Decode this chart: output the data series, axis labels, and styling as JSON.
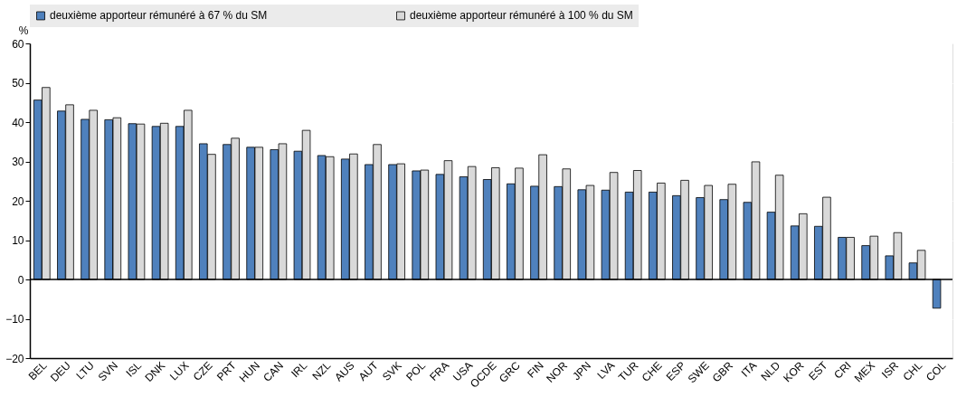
{
  "chart_data": {
    "type": "bar",
    "ylabel": "%",
    "categories": [
      "BEL",
      "DEU",
      "LTU",
      "SVN",
      "ISL",
      "DNK",
      "LUX",
      "CZE",
      "PRT",
      "HUN",
      "CAN",
      "IRL",
      "NZL",
      "AUS",
      "AUT",
      "SVK",
      "POL",
      "FRA",
      "USA",
      "OCDE",
      "GRC",
      "FIN",
      "NOR",
      "JPN",
      "LVA",
      "TUR",
      "CHE",
      "ESP",
      "SWE",
      "GBR",
      "ITA",
      "NLD",
      "KOR",
      "EST",
      "CRI",
      "MEX",
      "ISR",
      "CHL",
      "COL"
    ],
    "series": [
      {
        "name": "deuxième apporteur rémunéré à 67 % du SM",
        "color": "#4f81bd",
        "values": [
          45.6,
          42.8,
          40.7,
          40.6,
          39.6,
          38.9,
          38.9,
          34.5,
          34.3,
          33.6,
          33.0,
          32.6,
          31.5,
          30.6,
          29.2,
          29.2,
          27.6,
          26.7,
          26.1,
          25.4,
          24.3,
          23.7,
          23.6,
          22.8,
          22.7,
          22.2,
          22.2,
          21.3,
          20.8,
          20.3,
          19.6,
          17.1,
          13.6,
          13.5,
          10.7,
          8.6,
          6.0,
          4.2,
          -7.3
        ]
      },
      {
        "name": "deuxième apporteur rémunéré à 100 % du SM",
        "color": "#d9d9d9",
        "values": [
          48.8,
          44.4,
          43.0,
          41.1,
          39.5,
          39.7,
          43.0,
          31.8,
          35.9,
          33.6,
          34.5,
          37.9,
          31.2,
          31.9,
          34.3,
          29.4,
          27.8,
          30.2,
          28.7,
          28.4,
          28.3,
          31.7,
          28.1,
          23.9,
          27.2,
          27.7,
          24.5,
          25.2,
          23.9,
          24.2,
          29.9,
          26.5,
          16.7,
          20.9,
          10.7,
          11.0,
          11.9,
          7.4,
          null
        ]
      }
    ],
    "ylim": [
      -20,
      60
    ],
    "yticks": [
      -20,
      -10,
      0,
      10,
      20,
      30,
      40,
      50,
      60
    ],
    "grid": true,
    "legend": "top"
  }
}
